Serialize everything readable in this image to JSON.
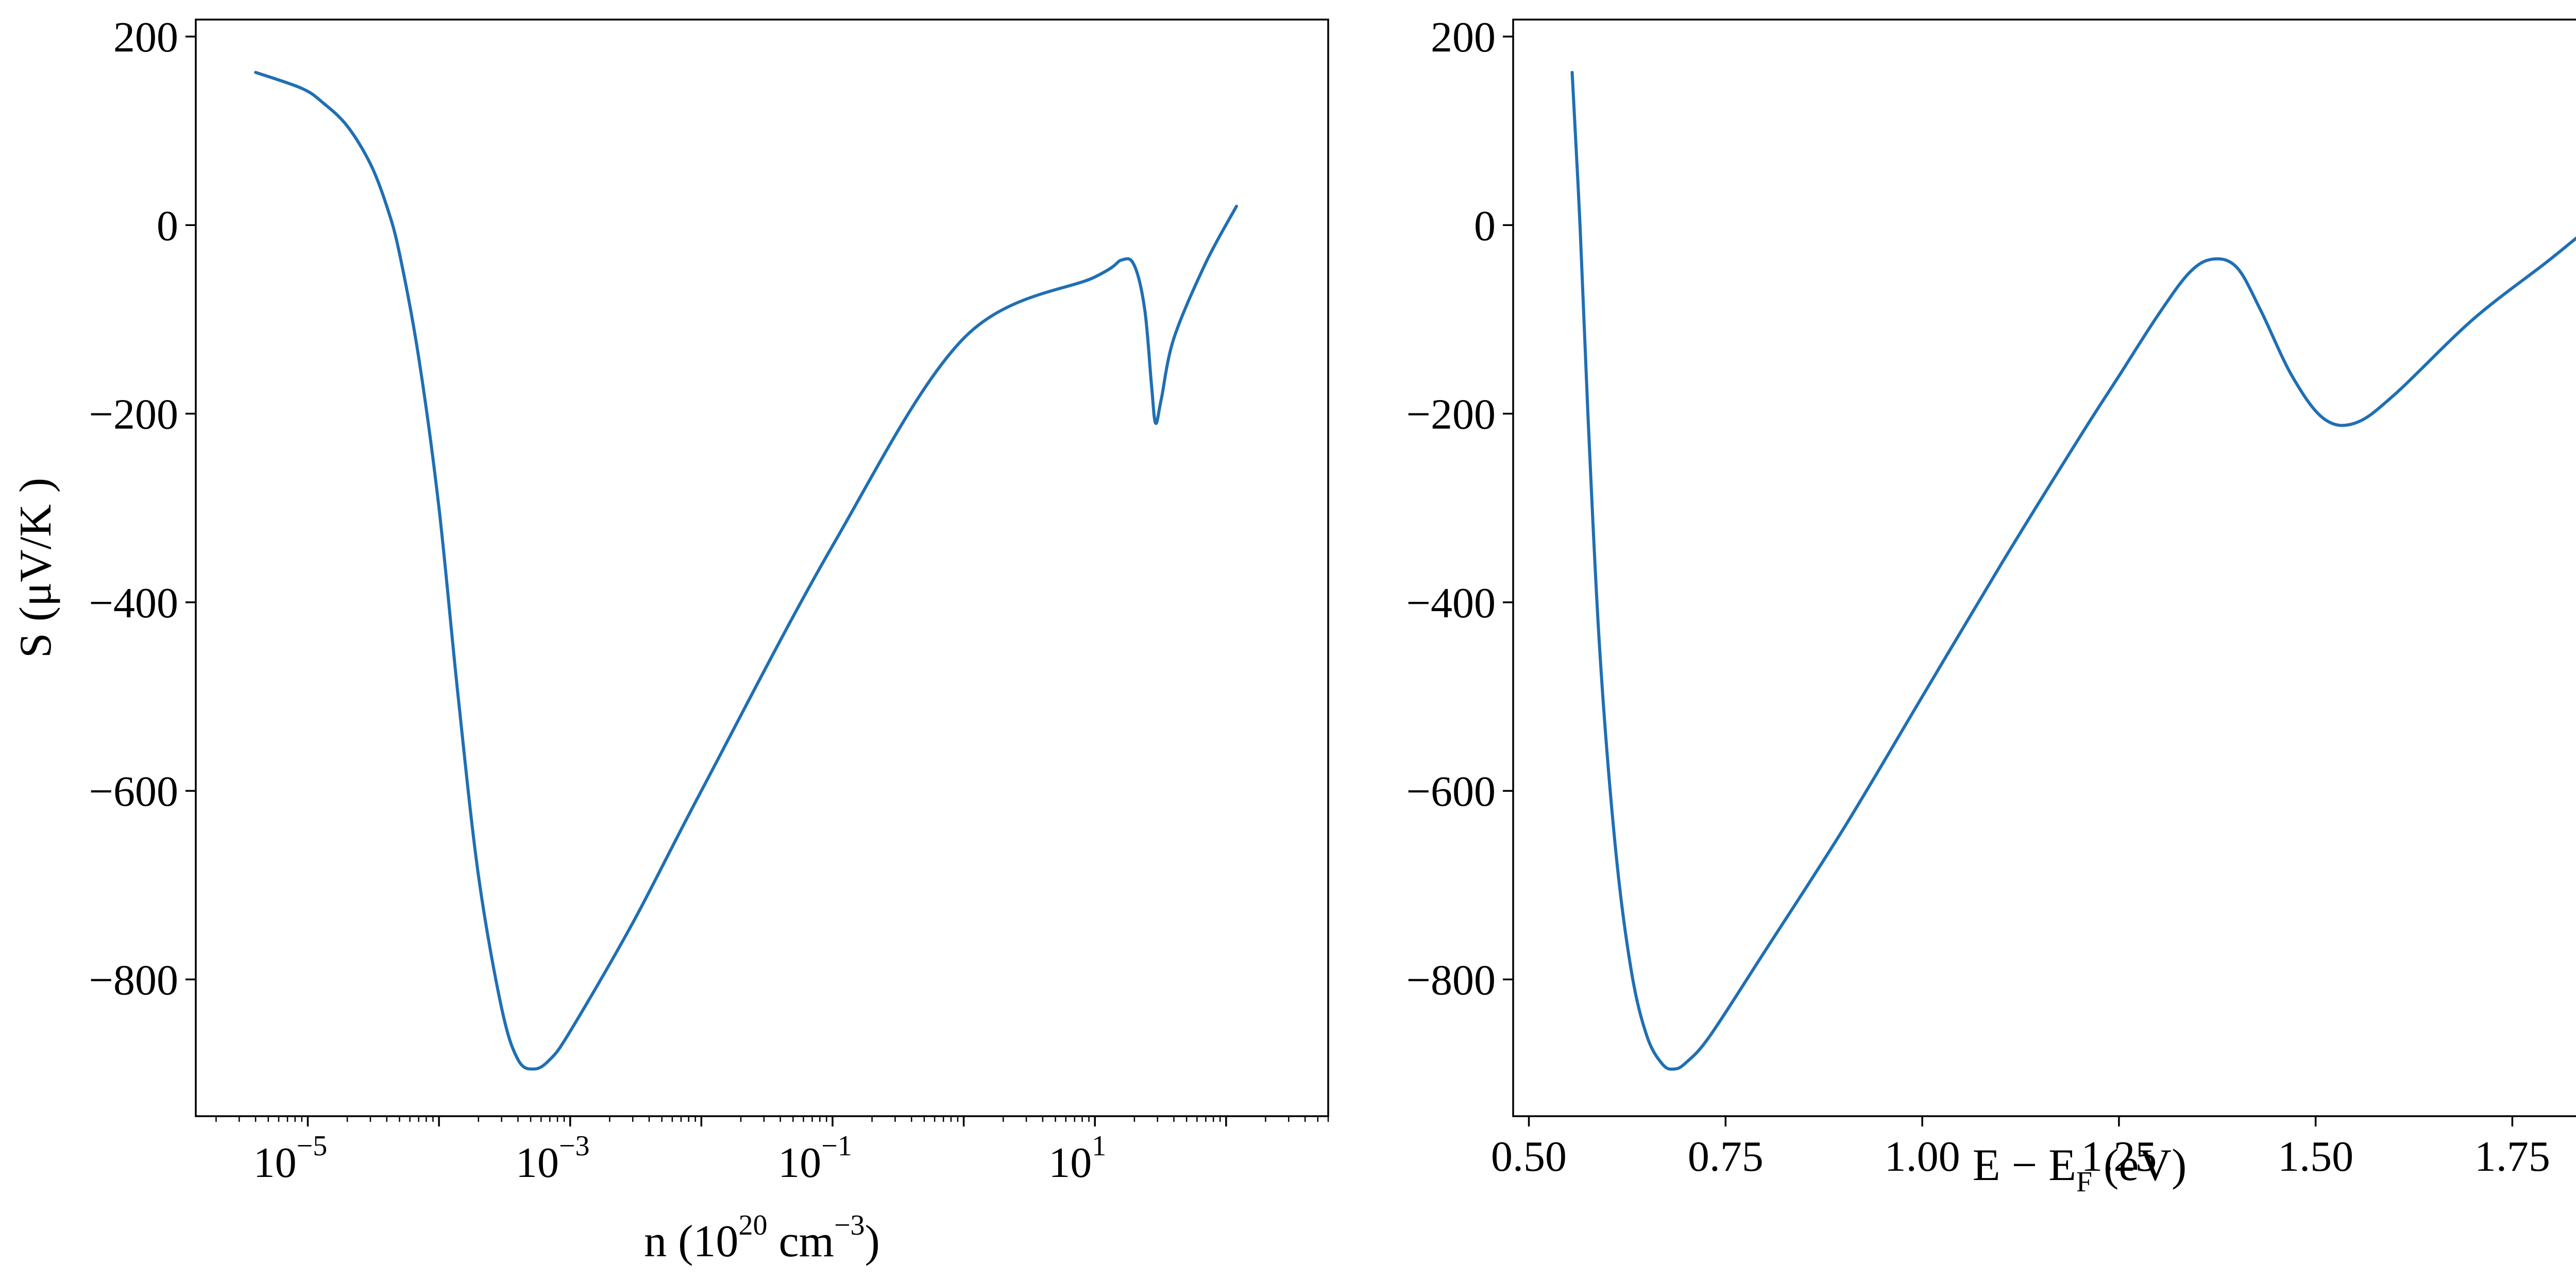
{
  "chart_data": [
    {
      "type": "line",
      "xscale": "log",
      "xlabel_parts": [
        "n (10",
        "20",
        " cm",
        "−3",
        ")"
      ],
      "ylabel": "S (μV/K )",
      "xlim": [
        1.4e-06,
        600
      ],
      "ylim": [
        -945,
        218
      ],
      "xticks": [
        {
          "exp": "−5",
          "value": 1e-05
        },
        {
          "exp": "−3",
          "value": 0.001
        },
        {
          "exp": "−1",
          "value": 0.1
        },
        {
          "exp": "1",
          "value": 10
        }
      ],
      "yticks": [
        200,
        0,
        -200,
        -400,
        -600,
        -800
      ],
      "ytick_labels": [
        "200",
        "0",
        "−200",
        "−400",
        "−600",
        "−800"
      ],
      "color": "#1f6fb4",
      "points": [
        [
          4e-06,
          162
        ],
        [
          9e-06,
          145
        ],
        [
          1.3e-05,
          130
        ],
        [
          2e-05,
          105
        ],
        [
          3e-05,
          65
        ],
        [
          4e-05,
          20
        ],
        [
          5e-05,
          -30
        ],
        [
          7e-05,
          -140
        ],
        [
          0.0001,
          -300
        ],
        [
          0.00014,
          -500
        ],
        [
          0.0002,
          -690
        ],
        [
          0.0003,
          -830
        ],
        [
          0.0004,
          -885
        ],
        [
          0.00053,
          -895
        ],
        [
          0.0007,
          -885
        ],
        [
          0.001,
          -855
        ],
        [
          0.003,
          -740
        ],
        [
          0.01,
          -600
        ],
        [
          0.1,
          -340
        ],
        [
          1,
          -120
        ],
        [
          10,
          -55
        ],
        [
          16,
          -37
        ],
        [
          20,
          -43
        ],
        [
          24,
          -90
        ],
        [
          27,
          -170
        ],
        [
          29,
          -210
        ],
        [
          32,
          -185
        ],
        [
          40,
          -120
        ],
        [
          70,
          -40
        ],
        [
          120,
          20
        ]
      ]
    },
    {
      "type": "line",
      "xlabel_parts": [
        "E − E",
        "F",
        " (eV)"
      ],
      "xlim": [
        0.48,
        1.92
      ],
      "ylim": [
        -945,
        218
      ],
      "xticks": [
        0.5,
        0.75,
        1.0,
        1.25,
        1.5,
        1.75
      ],
      "xtick_labels": [
        "0.50",
        "0.75",
        "1.00",
        "1.25",
        "1.50",
        "1.75"
      ],
      "yticks": [
        200,
        0,
        -200,
        -400,
        -600,
        -800
      ],
      "ytick_labels": [
        "200",
        "0",
        "−200",
        "−400",
        "−600",
        "−800"
      ],
      "color": "#1f6fb4",
      "points": [
        [
          0.555,
          162
        ],
        [
          0.565,
          0
        ],
        [
          0.575,
          -200
        ],
        [
          0.59,
          -450
        ],
        [
          0.61,
          -660
        ],
        [
          0.63,
          -790
        ],
        [
          0.65,
          -860
        ],
        [
          0.67,
          -890
        ],
        [
          0.685,
          -895
        ],
        [
          0.7,
          -888
        ],
        [
          0.73,
          -860
        ],
        [
          0.8,
          -770
        ],
        [
          0.9,
          -640
        ],
        [
          1.0,
          -500
        ],
        [
          1.1,
          -360
        ],
        [
          1.2,
          -225
        ],
        [
          1.25,
          -160
        ],
        [
          1.3,
          -95
        ],
        [
          1.34,
          -50
        ],
        [
          1.37,
          -36
        ],
        [
          1.4,
          -45
        ],
        [
          1.43,
          -90
        ],
        [
          1.47,
          -160
        ],
        [
          1.51,
          -205
        ],
        [
          1.55,
          -210
        ],
        [
          1.6,
          -180
        ],
        [
          1.7,
          -100
        ],
        [
          1.8,
          -35
        ],
        [
          1.88,
          20
        ]
      ]
    }
  ]
}
